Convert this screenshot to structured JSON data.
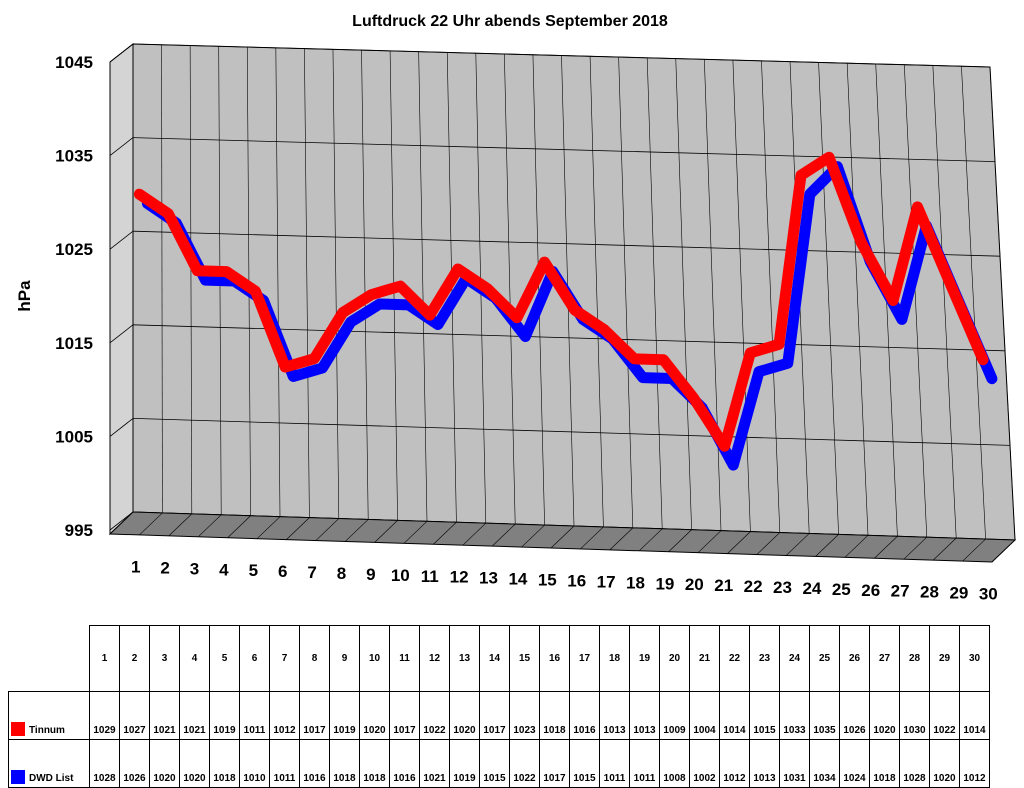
{
  "chart_data": {
    "type": "line",
    "title": "Luftdruck 22 Uhr abends September 2018",
    "xlabel": "",
    "ylabel": "hPa",
    "ylim": [
      995,
      1045
    ],
    "yticks": [
      "995",
      "1005",
      "1015",
      "1025",
      "1035",
      "1045"
    ],
    "categories": [
      "1",
      "2",
      "3",
      "4",
      "5",
      "6",
      "7",
      "8",
      "9",
      "10",
      "11",
      "12",
      "13",
      "14",
      "15",
      "16",
      "17",
      "18",
      "19",
      "20",
      "21",
      "22",
      "23",
      "24",
      "25",
      "26",
      "27",
      "28",
      "29",
      "30"
    ],
    "grid": true,
    "legend": "bottom-table",
    "series": [
      {
        "name": "Tinnum",
        "color": "#ff0000",
        "values": [
          1029,
          1027,
          1021,
          1021,
          1019,
          1011,
          1012,
          1017,
          1019,
          1020,
          1017,
          1022,
          1020,
          1017,
          1023,
          1018,
          1016,
          1013,
          1013,
          1009,
          1004,
          1014,
          1015,
          1033,
          1035,
          1026,
          1020,
          1030,
          1022,
          1014
        ]
      },
      {
        "name": "DWD List",
        "color": "#0000ff",
        "values": [
          1028,
          1026,
          1020,
          1020,
          1018,
          1010,
          1011,
          1016,
          1018,
          1018,
          1016,
          1021,
          1019,
          1015,
          1022,
          1017,
          1015,
          1011,
          1011,
          1008,
          1002,
          1012,
          1013,
          1031,
          1034,
          1024,
          1018,
          1028,
          1020,
          1012
        ]
      }
    ]
  },
  "colors": {
    "wall": "#c0c0c0",
    "floor": "#808080",
    "gridline": "#000000"
  }
}
